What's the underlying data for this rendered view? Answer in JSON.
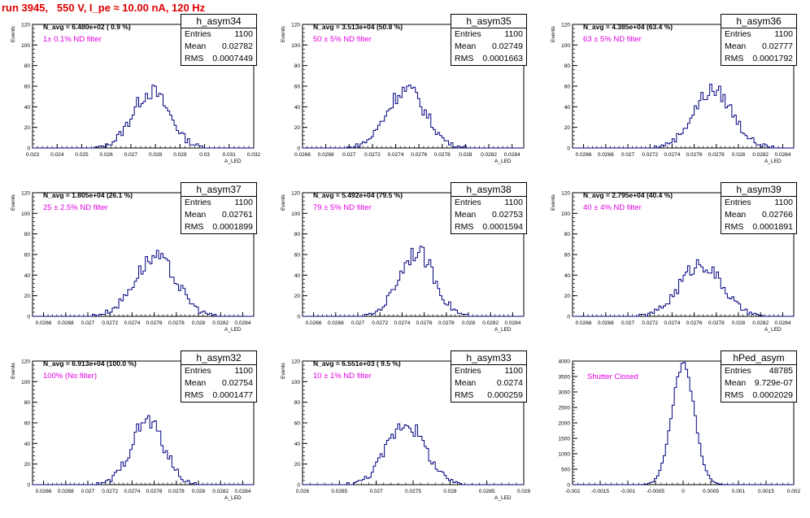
{
  "header": {
    "run_label": "run 3945,   550 V, I_pe ≈ 10.00 nA, 120 Hz"
  },
  "colors": {
    "histogram_line": "#000080",
    "title": "#e00000",
    "filter_text": "#e000e0"
  },
  "chart_data": [
    {
      "type": "histogram",
      "name": "h_asym34",
      "navg": "N_avg = 6.480e+02 ( 0.9 %)",
      "filter": "1± 0.1% ND filter",
      "ylabel": "Events",
      "xlabel": "A_LED",
      "stats": {
        "Entries": "1100",
        "Mean": "0.02782",
        "RMS": "0.0007449"
      },
      "xlim": [
        0.023,
        0.032
      ],
      "ylim": [
        0,
        120
      ],
      "xticks": [
        "0.023",
        "0.024",
        "0.025",
        "0.026",
        "0.027",
        "0.028",
        "0.029",
        "0.03",
        "0.031",
        "0.032"
      ],
      "yticks": [
        "0",
        "20",
        "40",
        "60",
        "80",
        "100",
        "120"
      ],
      "mean": 0.02782,
      "rms": 0.0007449,
      "peak": 55
    },
    {
      "type": "histogram",
      "name": "h_asym35",
      "navg": "N_avg = 3.513e+04 (50.8 %)",
      "filter": "50 ± 5% ND filter",
      "ylabel": "Events",
      "xlabel": "A_LED",
      "stats": {
        "Entries": "1100",
        "Mean": "0.02749",
        "RMS": "0.0001663"
      },
      "xlim": [
        0.0266,
        0.0285
      ],
      "ylim": [
        0,
        120
      ],
      "xticks": [
        "0.0266",
        "0.0268",
        "0.027",
        "0.0272",
        "0.0274",
        "0.0276",
        "0.0278",
        "0.028",
        "0.0282",
        "0.0284"
      ],
      "yticks": [
        "0",
        "20",
        "40",
        "60",
        "80",
        "100",
        "120"
      ],
      "mean": 0.02749,
      "rms": 0.0001663,
      "peak": 57
    },
    {
      "type": "histogram",
      "name": "h_asym36",
      "navg": "N_avg = 4.385e+04 (63.4 %)",
      "filter": "63 ± 5% ND filter",
      "ylabel": "Events",
      "xlabel": "A_LED",
      "stats": {
        "Entries": "1100",
        "Mean": "0.02777",
        "RMS": "0.0001792"
      },
      "xlim": [
        0.0265,
        0.0285
      ],
      "ylim": [
        0,
        120
      ],
      "xticks": [
        "0.0266",
        "0.0268",
        "0.027",
        "0.0272",
        "0.0274",
        "0.0276",
        "0.0278",
        "0.028",
        "0.0282",
        "0.0284"
      ],
      "yticks": [
        "0",
        "20",
        "40",
        "60",
        "80",
        "100",
        "120"
      ],
      "mean": 0.02777,
      "rms": 0.0001792,
      "peak": 56
    },
    {
      "type": "histogram",
      "name": "h_asym37",
      "navg": "N_avg = 1.805e+04 (26.1 %)",
      "filter": "25 ± 2.5% ND filter",
      "ylabel": "Events",
      "xlabel": "A_LED",
      "stats": {
        "Entries": "1100",
        "Mean": "0.02761",
        "RMS": "0.0001899"
      },
      "xlim": [
        0.0265,
        0.0285
      ],
      "ylim": [
        0,
        120
      ],
      "xticks": [
        "0.0266",
        "0.0268",
        "0.027",
        "0.0272",
        "0.0274",
        "0.0276",
        "0.0278",
        "0.028",
        "0.0282",
        "0.0284"
      ],
      "yticks": [
        "0",
        "20",
        "40",
        "60",
        "80",
        "100",
        "120"
      ],
      "mean": 0.02761,
      "rms": 0.0001899,
      "peak": 57
    },
    {
      "type": "histogram",
      "name": "h_asym38",
      "navg": "N_avg = 5.492e+04 (79.5 %)",
      "filter": "79 ± 5% ND filter",
      "ylabel": "Events",
      "xlabel": "A_LED",
      "stats": {
        "Entries": "1100",
        "Mean": "0.02753",
        "RMS": "0.0001594"
      },
      "xlim": [
        0.0265,
        0.0285
      ],
      "ylim": [
        0,
        120
      ],
      "xticks": [
        "0.0266",
        "0.0268",
        "0.027",
        "0.0272",
        "0.0274",
        "0.0276",
        "0.0278",
        "0.028",
        "0.0282",
        "0.0284"
      ],
      "yticks": [
        "0",
        "20",
        "40",
        "60",
        "80",
        "100",
        "120"
      ],
      "mean": 0.02753,
      "rms": 0.0001594,
      "peak": 63
    },
    {
      "type": "histogram",
      "name": "h_asym39",
      "navg": "N_avg = 2.795e+04 (40.4 %)",
      "filter": "40 ± 4% ND filter",
      "ylabel": "Events",
      "xlabel": "A_LED",
      "stats": {
        "Entries": "1100",
        "Mean": "0.02766",
        "RMS": "0.0001891"
      },
      "xlim": [
        0.0265,
        0.0285
      ],
      "ylim": [
        0,
        120
      ],
      "xticks": [
        "0.0266",
        "0.0268",
        "0.027",
        "0.0272",
        "0.0274",
        "0.0276",
        "0.0278",
        "0.028",
        "0.0282",
        "0.0284"
      ],
      "yticks": [
        "0",
        "20",
        "40",
        "60",
        "80",
        "100",
        "120"
      ],
      "mean": 0.02766,
      "rms": 0.0001891,
      "peak": 51
    },
    {
      "type": "histogram",
      "name": "h_asym32",
      "navg": "N_avg = 6.913e+04 (100.0 %)",
      "filter": "100% (No filter)",
      "ylabel": "Events",
      "xlabel": "A_LED",
      "stats": {
        "Entries": "1100",
        "Mean": "0.02754",
        "RMS": "0.0001477"
      },
      "xlim": [
        0.0265,
        0.0285
      ],
      "ylim": [
        0,
        120
      ],
      "xticks": [
        "0.0266",
        "0.0268",
        "0.027",
        "0.0272",
        "0.0274",
        "0.0276",
        "0.0278",
        "0.028",
        "0.0282",
        "0.0284"
      ],
      "yticks": [
        "0",
        "20",
        "40",
        "60",
        "80",
        "100",
        "120"
      ],
      "mean": 0.02754,
      "rms": 0.0001477,
      "peak": 62
    },
    {
      "type": "histogram",
      "name": "h_asym33",
      "navg": "N_avg = 6.551e+03 ( 9.5 %)",
      "filter": "10 ± 1% ND filter",
      "ylabel": "Events",
      "xlabel": "A_LED",
      "stats": {
        "Entries": "1100",
        "Mean": "0.0274",
        "RMS": "0.000259"
      },
      "xlim": [
        0.026,
        0.029
      ],
      "ylim": [
        0,
        120
      ],
      "xticks": [
        "0.026",
        "0.0265",
        "0.027",
        "0.0275",
        "0.028",
        "0.0285",
        "0.029"
      ],
      "yticks": [
        "0",
        "20",
        "40",
        "60",
        "80",
        "100",
        "120"
      ],
      "mean": 0.0274,
      "rms": 0.000259,
      "peak": 60
    },
    {
      "type": "histogram",
      "name": "hPed_asym",
      "navg": "",
      "filter": "Shutter Closed",
      "ylabel": "",
      "xlabel": "",
      "stats": {
        "Entries": "48785",
        "Mean": "9.729e-07",
        "RMS": "0.0002029"
      },
      "xlim": [
        -0.002,
        0.002
      ],
      "ylim": [
        0,
        4000
      ],
      "xticks": [
        "-0.002",
        "-0.0015",
        "-0.001",
        "-0.0005",
        "0",
        "0.0005",
        "0.001",
        "0.0015",
        "0.002"
      ],
      "yticks": [
        "0",
        "500",
        "1000",
        "1500",
        "2000",
        "2500",
        "3000",
        "3500",
        "4000"
      ],
      "mean": 9.729e-07,
      "rms": 0.0002029,
      "peak": 3900
    }
  ]
}
